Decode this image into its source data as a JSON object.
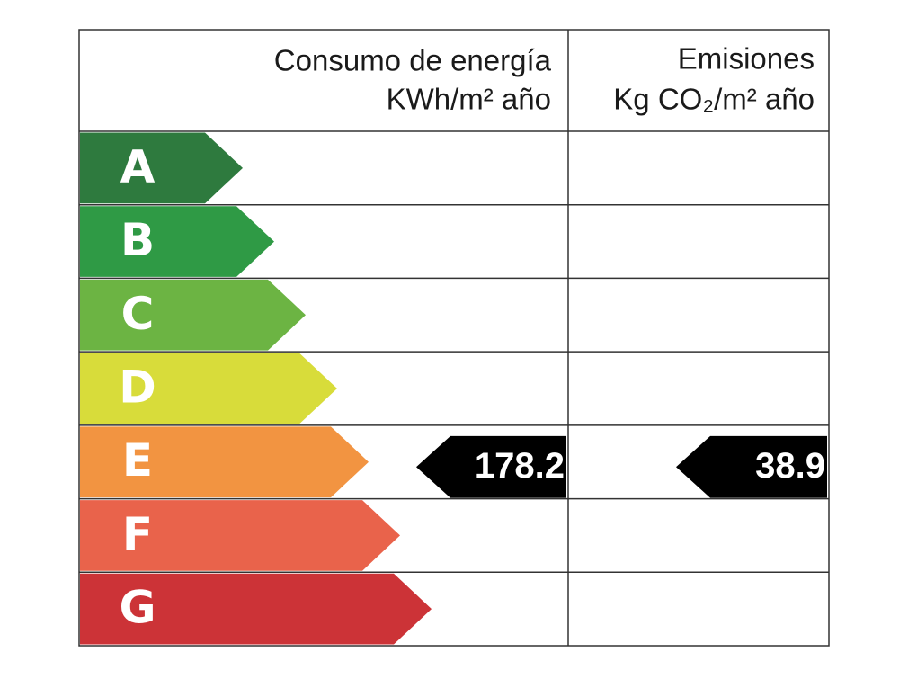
{
  "header": {
    "energy": {
      "title": "Consumo de energía",
      "unit": "KWh/m² año"
    },
    "emissions": {
      "title": "Emisiones",
      "unit": "Kg CO₂/m² año"
    }
  },
  "ratings": [
    {
      "letter": "A",
      "color": "#2e7a3e"
    },
    {
      "letter": "B",
      "color": "#2f9a45"
    },
    {
      "letter": "C",
      "color": "#6cb443"
    },
    {
      "letter": "D",
      "color": "#d8dc3a"
    },
    {
      "letter": "E",
      "color": "#f29441"
    },
    {
      "letter": "F",
      "color": "#e9634b"
    },
    {
      "letter": "G",
      "color": "#cc3337"
    }
  ],
  "energy": {
    "value": 178.2,
    "rating": "E"
  },
  "emissions": {
    "value": 38.9,
    "rating": "E"
  }
}
